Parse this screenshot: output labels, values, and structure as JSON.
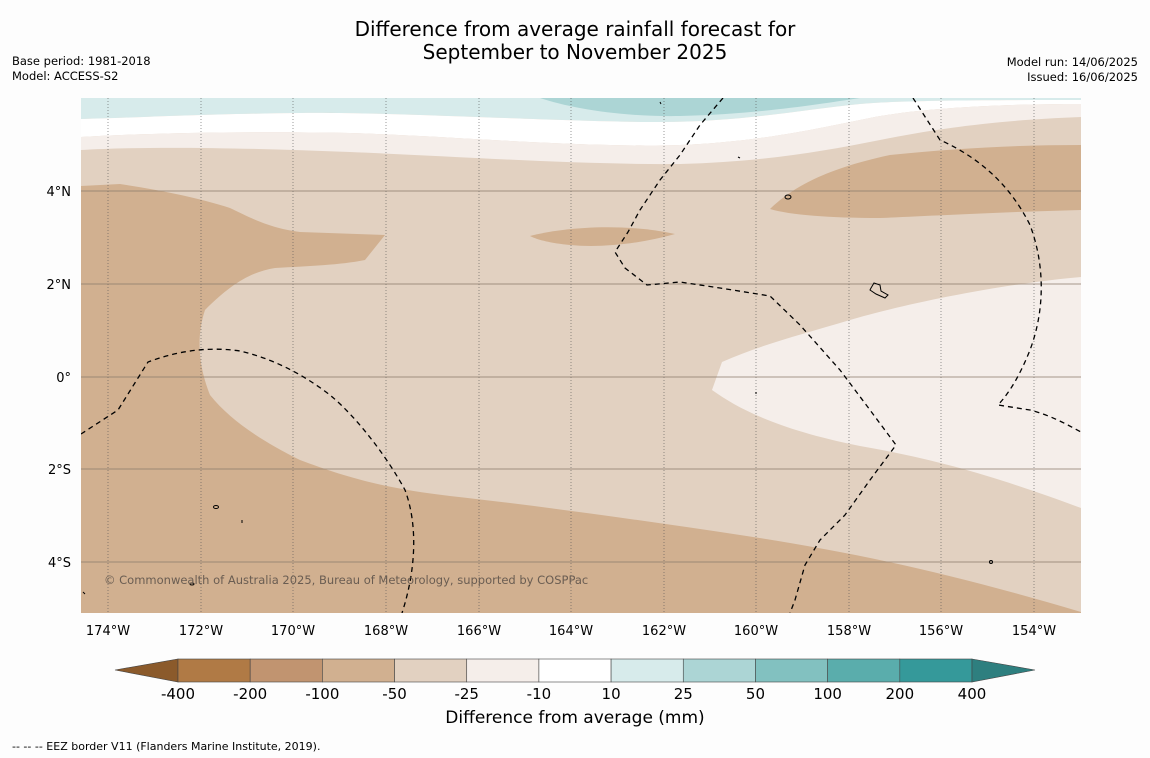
{
  "header": {
    "title_line1": "Difference from average rainfall forecast for",
    "title_line2": "September to November 2025",
    "base_period": "Base period: 1981-2018",
    "model": "Model: ACCESS-S2",
    "model_run": "Model run: 14/06/2025",
    "issued": "Issued: 16/06/2025"
  },
  "map": {
    "x_ticks": [
      "174°W",
      "172°W",
      "170°W",
      "168°W",
      "166°W",
      "164°W",
      "162°W",
      "160°W",
      "158°W",
      "156°W",
      "154°W"
    ],
    "y_ticks": [
      "4°N",
      "2°N",
      "0°",
      "2°S",
      "4°S"
    ],
    "copyright": "© Commonwealth of Australia 2025, Bureau of Meteorology, supported by COSPPac"
  },
  "colorbar": {
    "ticks": [
      "-400",
      "-200",
      "-100",
      "-50",
      "-25",
      "-10",
      "10",
      "25",
      "50",
      "100",
      "200",
      "400"
    ],
    "colors": [
      "#8b5a2b",
      "#b07a45",
      "#c19470",
      "#d1b090",
      "#e2d1c1",
      "#f5eeea",
      "#ffffff",
      "#d7ebeb",
      "#acd5d5",
      "#82c1c0",
      "#5aadac",
      "#35999a",
      "#2e7f7f"
    ],
    "label": "Difference from average (mm)"
  },
  "footnote": "-- -- -- EEZ border V11 (Flanders Marine Institute, 2019)."
}
